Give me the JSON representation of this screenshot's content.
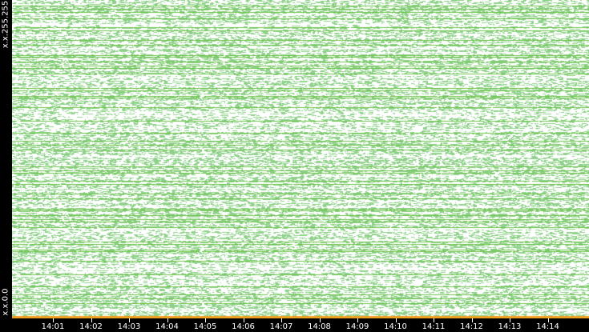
{
  "chart_data": {
    "type": "scatter",
    "title": "",
    "xlabel": "",
    "ylabel": "",
    "x_tick_labels": [
      "14:01",
      "14:02",
      "14:03",
      "14:04",
      "14:05",
      "14:06",
      "14:07",
      "14:08",
      "14:09",
      "14:10",
      "14:11",
      "14:12",
      "14:13",
      "14:14"
    ],
    "y_tick_labels": {
      "top": "x.x.255.255",
      "bottom": "x.x.0.0"
    },
    "grid": false,
    "legend": "none",
    "colors": {
      "points": "#8fd18a",
      "dense_rows": "#6cc24a",
      "bottom_band": "#f0a020",
      "background": "#ffffff",
      "axis": "#000000"
    }
  }
}
